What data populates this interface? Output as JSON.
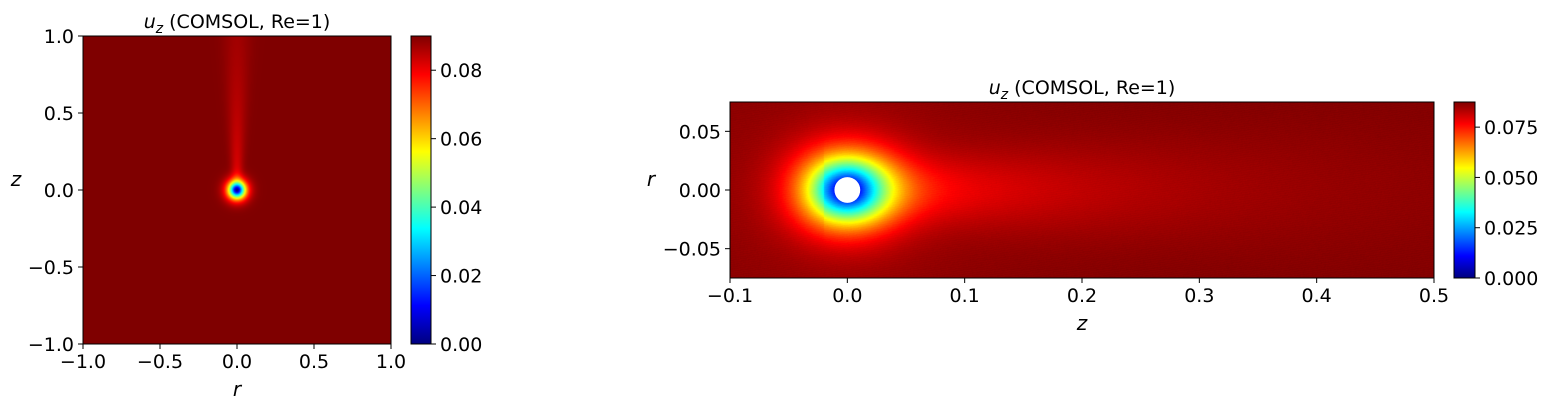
{
  "colormap": "jet",
  "colors": {
    "jet": [
      "#00007f",
      "#0000ff",
      "#007fff",
      "#00ffff",
      "#7fff7f",
      "#ffff00",
      "#ff7f00",
      "#ff0000",
      "#7f0000"
    ],
    "background": "#ffffff",
    "obstacle": "#ffffff"
  },
  "chart_data": [
    {
      "type": "heatmap",
      "title_main": "u",
      "title_sub": "z",
      "title_rest": " (COMSOL, Re=1)",
      "xlabel": "r",
      "ylabel": "z",
      "xlim": [
        -1.0,
        1.0
      ],
      "ylim": [
        -1.0,
        1.0
      ],
      "xticks": [
        -1.0,
        -0.5,
        0.0,
        0.5,
        1.0
      ],
      "yticks": [
        -1.0,
        -0.5,
        0.0,
        0.5,
        1.0
      ],
      "xtick_labels": [
        "−1.0",
        "−0.5",
        "0.0",
        "0.5",
        "1.0"
      ],
      "ytick_labels": [
        "−1.0",
        "−0.5",
        "0.0",
        "0.5",
        "1.0"
      ],
      "field": "u_z",
      "value_range": [
        0.0,
        0.09
      ],
      "far_field_value": 0.09,
      "sphere_center": [
        0.0,
        0.0
      ],
      "wake_axis": "z",
      "colorbar": {
        "range": [
          0.0,
          0.09
        ],
        "ticks": [
          0.0,
          0.02,
          0.04,
          0.06,
          0.08
        ],
        "tick_labels": [
          "0.00",
          "0.02",
          "0.04",
          "0.06",
          "0.08"
        ]
      }
    },
    {
      "type": "heatmap",
      "title_main": "u",
      "title_sub": "z",
      "title_rest": " (COMSOL, Re=1)",
      "xlabel": "z",
      "ylabel": "r",
      "xlim": [
        -0.1,
        0.5
      ],
      "ylim": [
        -0.075,
        0.075
      ],
      "xticks": [
        -0.1,
        0.0,
        0.1,
        0.2,
        0.3,
        0.4,
        0.5
      ],
      "yticks": [
        -0.05,
        0.0,
        0.05
      ],
      "xtick_labels": [
        "−0.1",
        "0.0",
        "0.1",
        "0.2",
        "0.3",
        "0.4",
        "0.5"
      ],
      "ytick_labels": [
        "−0.05",
        "0.00",
        "0.05"
      ],
      "field": "u_z",
      "value_range": [
        0.0,
        0.0875
      ],
      "far_field_value": 0.0875,
      "sphere_center": [
        0.0,
        0.0
      ],
      "sphere_radius": 0.011,
      "wake_axis": "z",
      "colorbar": {
        "range": [
          0.0,
          0.0875
        ],
        "ticks": [
          0.0,
          0.025,
          0.05,
          0.075
        ],
        "tick_labels": [
          "0.000",
          "0.025",
          "0.050",
          "0.075"
        ]
      }
    }
  ]
}
